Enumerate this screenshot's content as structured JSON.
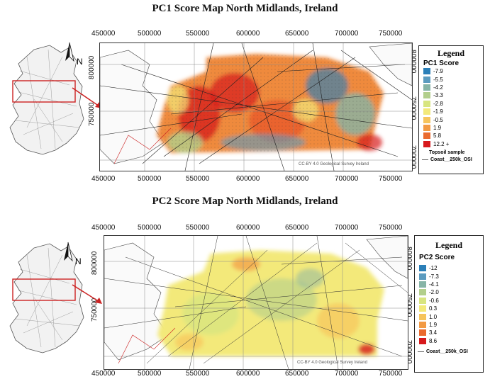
{
  "maps": [
    {
      "id": "pc1",
      "title": "PC1 Score Map North Midlands, Ireland",
      "x_ticks": [
        "450000",
        "500000",
        "550000",
        "600000",
        "650000",
        "700000",
        "750000"
      ],
      "y_ticks": [
        "800000",
        "750000",
        "700000"
      ],
      "legend": {
        "title": "Legend",
        "subtitle": "PC1 Score",
        "entries": [
          {
            "label": "-7.9",
            "color": "#2b7fb8"
          },
          {
            "label": "-5.5",
            "color": "#5b9bbf"
          },
          {
            "label": "-4.2",
            "color": "#86b4a6"
          },
          {
            "label": "-3.3",
            "color": "#b2cf8c"
          },
          {
            "label": "-2.8",
            "color": "#d8e57f"
          },
          {
            "label": "-1.9",
            "color": "#f3e97a"
          },
          {
            "label": "-0.5",
            "color": "#f6c45c"
          },
          {
            "label": "1.9",
            "color": "#f29a44"
          },
          {
            "label": "5.8",
            "color": "#ea6a2e"
          },
          {
            "label": "12.2 +",
            "color": "#d7191c"
          }
        ],
        "sample_label": "Topsoil sample",
        "coast_label": "Coast__250k_OSI"
      },
      "attribution": "CC-BY 4.0 Geological Survey Ireland"
    },
    {
      "id": "pc2",
      "title": "PC2 Score Map North Midlands, Ireland",
      "x_ticks": [
        "450000",
        "500000",
        "550000",
        "600000",
        "650000",
        "700000",
        "750000"
      ],
      "y_ticks": [
        "800000",
        "750000",
        "700000"
      ],
      "legend": {
        "title": "Legend",
        "subtitle": "PC2 Score",
        "entries": [
          {
            "label": "-12",
            "color": "#2b7fb8"
          },
          {
            "label": "-7.3",
            "color": "#5b9bbf"
          },
          {
            "label": "-4.1",
            "color": "#86b4a6"
          },
          {
            "label": "-2.0",
            "color": "#b2cf8c"
          },
          {
            "label": "-0.6",
            "color": "#d8e57f"
          },
          {
            "label": "0.3",
            "color": "#f3e97a"
          },
          {
            "label": "1.0",
            "color": "#f6c45c"
          },
          {
            "label": "1.9",
            "color": "#f29a44"
          },
          {
            "label": "3.4",
            "color": "#ea6a2e"
          },
          {
            "label": "8.6",
            "color": "#d7191c"
          }
        ],
        "sample_label": "",
        "coast_label": "Coast__250k_OSI"
      },
      "attribution": "CC-BY 4.0 Geological Survey Ireland"
    }
  ],
  "north_label": "N",
  "colors": {
    "frame": "#333333",
    "fault": "#222222",
    "coast": "#444444",
    "inset_box": "#cc2222",
    "arrow": "#cc2222"
  }
}
